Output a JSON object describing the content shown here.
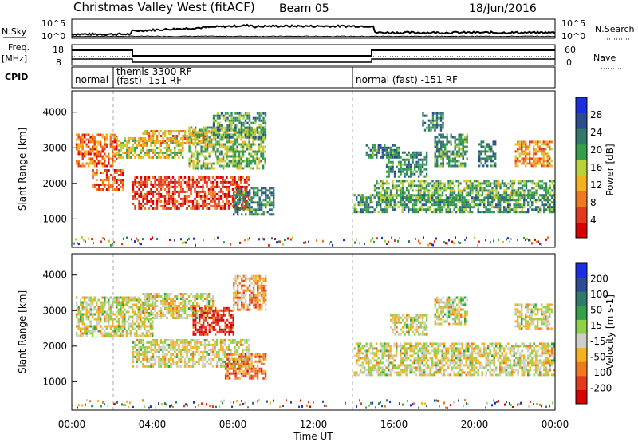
{
  "header": {
    "station": "Christmas Valley West (fitACF)",
    "beam": "Beam 05",
    "date": "18/Jun/2016"
  },
  "top_panels": {
    "nsky_label": "N.Sky",
    "nsky_ticks": [
      "10^5",
      "10^0"
    ],
    "nsearch_label": "N.Search",
    "nsearch_ticks": [
      "10^5",
      "10^0"
    ],
    "freq_label_1": "Freq.",
    "freq_label_2": "[MHz]",
    "freq_ticks": [
      "18",
      "8"
    ],
    "nave_label": "Nave",
    "nave_ticks": [
      "60",
      "0"
    ],
    "cpid_label": "CPID",
    "cpid_segments": [
      "normal",
      "themis 3300 RF",
      "(fast) -151 RF",
      "normal (fast) -151 RF"
    ]
  },
  "chart_data": [
    {
      "type": "heatmap",
      "name": "Power",
      "ylabel": "Slant Range [km]",
      "yticks": [
        "1000",
        "2000",
        "3000",
        "4000"
      ],
      "ylim": [
        200,
        4600
      ],
      "colorbar_label": "Power [dB]",
      "colorbar_ticks": [
        "4",
        "8",
        "12",
        "16",
        "20",
        "24",
        "28"
      ],
      "colors": [
        "#1a2fe0",
        "#2b4c8f",
        "#2f7a6a",
        "#35a04a",
        "#b9d23a",
        "#f5b21d",
        "#f0781f",
        "#e33a1f",
        "#d80000"
      ],
      "bands": [
        {
          "t0": 0.2,
          "t1": 2.2,
          "r0": 2500,
          "r1": 3400,
          "level": 0.75
        },
        {
          "t0": 1.0,
          "t1": 2.5,
          "r0": 1800,
          "r1": 2400,
          "level": 0.8
        },
        {
          "t0": 2.2,
          "t1": 5.5,
          "r0": 2700,
          "r1": 3300,
          "level": 0.55
        },
        {
          "t0": 3.5,
          "t1": 6.8,
          "r0": 3100,
          "r1": 3500,
          "level": 0.65
        },
        {
          "t0": 3.0,
          "t1": 8.8,
          "r0": 1300,
          "r1": 2200,
          "level": 0.85
        },
        {
          "t0": 5.8,
          "t1": 9.6,
          "r0": 2400,
          "r1": 3600,
          "level": 0.45
        },
        {
          "t0": 7.0,
          "t1": 9.6,
          "r0": 3300,
          "r1": 4000,
          "level": 0.35
        },
        {
          "t0": 8.0,
          "t1": 10.0,
          "r0": 1100,
          "r1": 1900,
          "level": 0.3
        },
        {
          "t0": 14.6,
          "t1": 16.2,
          "r0": 2700,
          "r1": 3100,
          "level": 0.3
        },
        {
          "t0": 15.6,
          "t1": 17.6,
          "r0": 2200,
          "r1": 2900,
          "level": 0.3
        },
        {
          "t0": 15.0,
          "t1": 24.0,
          "r0": 1500,
          "r1": 2100,
          "level": 0.4
        },
        {
          "t0": 14.0,
          "t1": 24.0,
          "r0": 1200,
          "r1": 1700,
          "level": 0.35
        },
        {
          "t0": 18.0,
          "t1": 19.6,
          "r0": 2500,
          "r1": 3400,
          "level": 0.35
        },
        {
          "t0": 20.2,
          "t1": 21.0,
          "r0": 2500,
          "r1": 3200,
          "level": 0.3
        },
        {
          "t0": 22.0,
          "t1": 23.8,
          "r0": 2500,
          "r1": 3200,
          "level": 0.7
        },
        {
          "t0": 17.4,
          "t1": 18.4,
          "r0": 3500,
          "r1": 4000,
          "level": 0.3
        }
      ]
    },
    {
      "type": "heatmap",
      "name": "Velocity",
      "ylabel": "Slant Range [km]",
      "yticks": [
        "1000",
        "2000",
        "3000",
        "4000"
      ],
      "ylim": [
        200,
        4600
      ],
      "xlabel": "Time UT",
      "xticks": [
        "00:00",
        "04:00",
        "08:00",
        "12:00",
        "16:00",
        "20:00",
        "00:00"
      ],
      "colorbar_label": "Velocity [m s-1]",
      "colorbar_ticks": [
        "200",
        "100",
        "50",
        "15",
        "-15",
        "-50",
        "-100",
        "-200"
      ],
      "colors": [
        "#1a2fe0",
        "#2b4c8f",
        "#2f7a6a",
        "#35a04a",
        "#8ed24a",
        "#cfcfca",
        "#f5b21d",
        "#f0781f",
        "#e33a1f",
        "#d80000"
      ],
      "bands": [
        {
          "t0": 0.2,
          "t1": 4.0,
          "r0": 2300,
          "r1": 3400,
          "level": 0.55
        },
        {
          "t0": 3.0,
          "t1": 8.8,
          "r0": 1400,
          "r1": 2200,
          "level": 0.55
        },
        {
          "t0": 3.5,
          "t1": 7.0,
          "r0": 2800,
          "r1": 3500,
          "level": 0.55
        },
        {
          "t0": 6.0,
          "t1": 8.0,
          "r0": 2300,
          "r1": 3100,
          "level": 0.88
        },
        {
          "t0": 7.6,
          "t1": 9.6,
          "r0": 1100,
          "r1": 1800,
          "level": 0.75
        },
        {
          "t0": 8.0,
          "t1": 9.6,
          "r0": 3000,
          "r1": 4000,
          "level": 0.7
        },
        {
          "t0": 14.0,
          "t1": 24.0,
          "r0": 1200,
          "r1": 2100,
          "level": 0.55
        },
        {
          "t0": 15.8,
          "t1": 17.6,
          "r0": 2300,
          "r1": 2900,
          "level": 0.55
        },
        {
          "t0": 22.0,
          "t1": 23.8,
          "r0": 2500,
          "r1": 3200,
          "level": 0.55
        },
        {
          "t0": 18.0,
          "t1": 19.6,
          "r0": 2600,
          "r1": 3400,
          "level": 0.55
        }
      ]
    }
  ]
}
